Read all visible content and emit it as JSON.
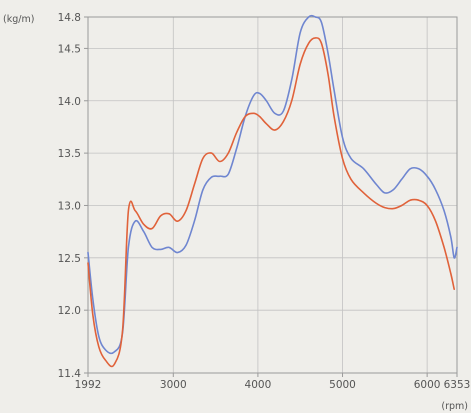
{
  "chart_data": {
    "type": "line",
    "title": "",
    "xlabel": "(rpm)",
    "ylabel": "(kg/m)",
    "xlim": [
      1992,
      6353
    ],
    "ylim": [
      11.4,
      14.8
    ],
    "x_ticks": [
      1992,
      3000,
      4000,
      5000,
      6000,
      6353
    ],
    "x_tick_labels": [
      "1992",
      "3000",
      "4000",
      "5000",
      "6000",
      "6353"
    ],
    "y_ticks": [
      11.4,
      12.0,
      12.5,
      13.0,
      13.5,
      14.0,
      14.5,
      14.8
    ],
    "y_tick_labels": [
      "11.4",
      "12.0",
      "12.5",
      "13.0",
      "13.5",
      "14.0",
      "14.5",
      "14.8"
    ],
    "grid": true,
    "colors": {
      "blue": "#6f86d0",
      "orange": "#e0623a"
    },
    "series": [
      {
        "color": "#6f86d0",
        "x": [
          1992,
          2050,
          2120,
          2200,
          2300,
          2400,
          2470,
          2550,
          2650,
          2750,
          2850,
          2950,
          3050,
          3150,
          3250,
          3350,
          3450,
          3550,
          3650,
          3750,
          3850,
          3950,
          4020,
          4100,
          4200,
          4300,
          4400,
          4500,
          4600,
          4680,
          4750,
          4830,
          4900,
          5000,
          5100,
          5250,
          5400,
          5500,
          5600,
          5700,
          5800,
          5900,
          6000,
          6100,
          6200,
          6280,
          6320,
          6353
        ],
        "y": [
          12.55,
          12.1,
          11.75,
          11.62,
          11.6,
          11.78,
          12.6,
          12.85,
          12.75,
          12.6,
          12.58,
          12.6,
          12.55,
          12.62,
          12.85,
          13.15,
          13.27,
          13.28,
          13.3,
          13.55,
          13.85,
          14.05,
          14.07,
          14.0,
          13.88,
          13.9,
          14.2,
          14.65,
          14.8,
          14.8,
          14.75,
          14.45,
          14.1,
          13.65,
          13.45,
          13.35,
          13.2,
          13.12,
          13.15,
          13.25,
          13.35,
          13.35,
          13.28,
          13.15,
          12.95,
          12.7,
          12.5,
          12.6
        ]
      },
      {
        "color": "#e0623a",
        "x": [
          1992,
          2050,
          2120,
          2200,
          2300,
          2400,
          2470,
          2550,
          2650,
          2750,
          2850,
          2950,
          3050,
          3150,
          3250,
          3350,
          3450,
          3550,
          3650,
          3750,
          3850,
          3950,
          4020,
          4100,
          4200,
          4300,
          4400,
          4500,
          4600,
          4680,
          4750,
          4830,
          4900,
          5000,
          5100,
          5250,
          5400,
          5500,
          5600,
          5700,
          5800,
          5900,
          6000,
          6100,
          6200,
          6280,
          6320
        ],
        "y": [
          12.45,
          11.95,
          11.65,
          11.52,
          11.48,
          11.8,
          12.95,
          12.95,
          12.82,
          12.78,
          12.9,
          12.92,
          12.85,
          12.95,
          13.2,
          13.45,
          13.5,
          13.42,
          13.5,
          13.7,
          13.85,
          13.88,
          13.85,
          13.78,
          13.72,
          13.8,
          14.0,
          14.35,
          14.55,
          14.6,
          14.55,
          14.25,
          13.85,
          13.45,
          13.25,
          13.12,
          13.02,
          12.98,
          12.97,
          13.0,
          13.05,
          13.05,
          13.0,
          12.85,
          12.6,
          12.35,
          12.2
        ]
      }
    ]
  }
}
